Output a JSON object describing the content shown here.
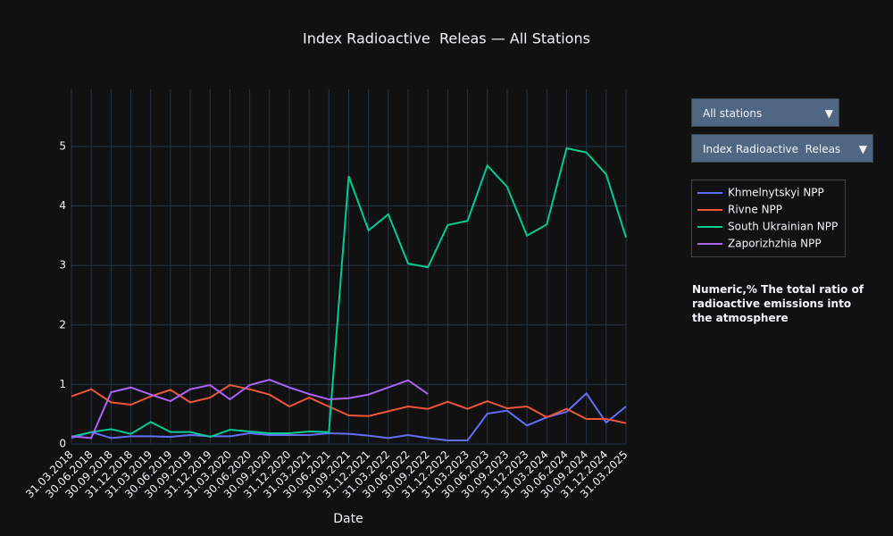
{
  "chart_data": {
    "type": "line",
    "title": "Index Radioactive  Releas — All Stations",
    "x_label": "Date",
    "dropdowns": [
      "All stations",
      "Index Radioactive  Releas"
    ],
    "annotation": "Numeric,% The total ratio of radioactive emissions into the atmosphere",
    "categories": [
      "31.03.2018",
      "30.06.2018",
      "30.09.2018",
      "31.12.2018",
      "31.03.2019",
      "30.06.2019",
      "30.09.2019",
      "31.12.2019",
      "31.03.2020",
      "30.06.2020",
      "30.09.2020",
      "31.12.2020",
      "31.03.2021",
      "30.06.2021",
      "30.09.2021",
      "31.12.2021",
      "31.03.2022",
      "30.06.2022",
      "30.09.2022",
      "31.12.2022",
      "31.03.2023",
      "30.06.2023",
      "30.09.2023",
      "31.12.2023",
      "31.03.2024",
      "30.06.2024",
      "30.09.2024",
      "31.12.2024",
      "31.03.2025"
    ],
    "series": [
      {
        "name": "Khmelnytskyi NPP",
        "color": "#636efa",
        "values": [
          0.1,
          0.2,
          0.1,
          0.13,
          0.13,
          0.12,
          0.15,
          0.13,
          0.13,
          0.18,
          0.15,
          0.15,
          0.15,
          0.18,
          0.17,
          0.14,
          0.1,
          0.15,
          0.1,
          0.06,
          0.06,
          0.51,
          0.56,
          0.31,
          0.45,
          0.54,
          0.85,
          0.36,
          0.63
        ]
      },
      {
        "name": "Rivne NPP",
        "color": "#EF553B",
        "values": [
          0.8,
          0.92,
          0.7,
          0.66,
          0.8,
          0.91,
          0.7,
          0.78,
          0.99,
          0.92,
          0.83,
          0.63,
          0.78,
          0.63,
          0.48,
          0.47,
          0.55,
          0.63,
          0.59,
          0.71,
          0.59,
          0.72,
          0.6,
          0.63,
          0.45,
          0.59,
          0.42,
          0.42,
          0.35
        ]
      },
      {
        "name": "South Ukrainian NPP",
        "color": "#00cc96",
        "values": [
          0.12,
          0.2,
          0.25,
          0.17,
          0.37,
          0.2,
          0.2,
          0.12,
          0.24,
          0.21,
          0.18,
          0.18,
          0.21,
          0.2,
          4.5,
          3.59,
          3.86,
          3.03,
          2.97,
          3.68,
          3.75,
          4.68,
          4.32,
          3.5,
          3.69,
          4.97,
          4.9,
          4.53,
          3.47
        ]
      },
      {
        "name": "Zaporizhzhia NPP",
        "color": "#ab63fa",
        "values": [
          0.13,
          0.1,
          0.87,
          0.95,
          0.83,
          0.72,
          0.92,
          0.99,
          0.75,
          0.99,
          1.08,
          0.95,
          0.84,
          0.75,
          0.77,
          0.83,
          0.95,
          1.07,
          0.84,
          null,
          null,
          null,
          null,
          null,
          null,
          null,
          null,
          null,
          null
        ]
      }
    ],
    "ylim": [
      0,
      5.96
    ],
    "yticks": [
      0,
      1,
      2,
      3,
      4,
      5
    ],
    "grid": true
  }
}
